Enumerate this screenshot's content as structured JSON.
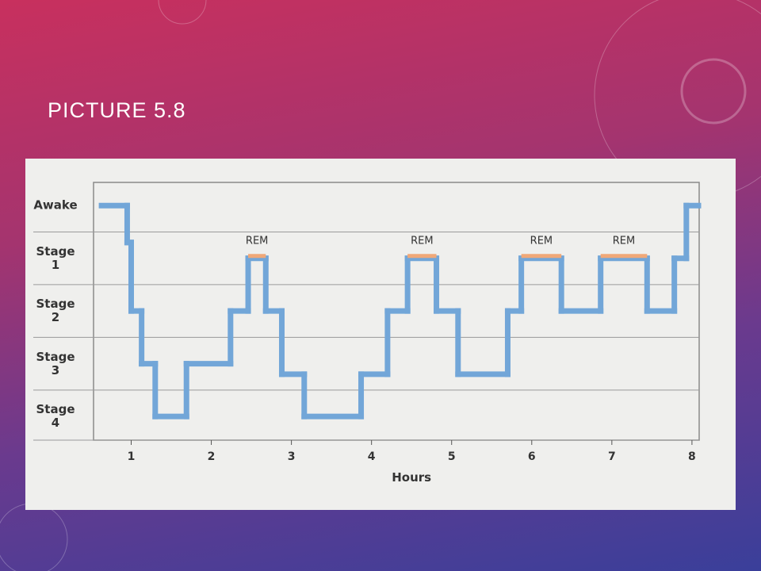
{
  "slide_title": "PICTURE 5.8",
  "chart_data": {
    "type": "step",
    "x": [
      0.63,
      0.95,
      1.0,
      1.13,
      1.3,
      1.69,
      2.24,
      2.46,
      2.68,
      2.88,
      3.16,
      3.87,
      4.2,
      4.45,
      4.81,
      5.08,
      5.7,
      5.87,
      6.37,
      6.86,
      7.44,
      7.78,
      7.93,
      8.08
    ],
    "series": [
      {
        "color": "#72a6d8",
        "values": [
          0,
          0.7,
          2,
          3,
          4,
          3,
          2,
          1,
          2,
          3.2,
          4,
          3.2,
          2,
          1,
          2,
          3.2,
          2,
          1,
          2,
          1,
          2,
          1,
          0,
          0
        ]
      }
    ],
    "annotations": [
      {
        "text": "REM",
        "x": [
          2.46,
          2.68
        ],
        "y": 1
      },
      {
        "text": "REM",
        "x": [
          4.45,
          4.81
        ],
        "y": 1
      },
      {
        "text": "REM",
        "x": [
          5.87,
          6.37
        ],
        "y": 1
      },
      {
        "text": "REM",
        "x": [
          6.86,
          7.44
        ],
        "y": 1
      }
    ],
    "annotation_color": "#f0a878",
    "xlabel": "Hours",
    "xlim": [
      0.53,
      8.09
    ],
    "xticks": [
      1,
      2,
      3,
      4,
      5,
      6,
      7,
      8
    ],
    "ylim": [
      -0.44,
      4.45
    ],
    "yticks": [
      {
        "value": 0,
        "label": "Awake"
      },
      {
        "value": 1,
        "label": "Stage 1"
      },
      {
        "value": 2,
        "label": "Stage 2"
      },
      {
        "value": 3,
        "label": "Stage 3"
      },
      {
        "value": 4,
        "label": "Stage 4"
      }
    ]
  }
}
